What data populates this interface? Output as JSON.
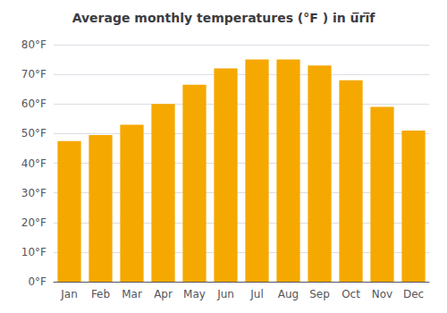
{
  "chart_data": {
    "type": "bar",
    "title": "Average monthly temperatures (°F ) in ū̅rī̅f",
    "categories": [
      "Jan",
      "Feb",
      "Mar",
      "Apr",
      "May",
      "Jun",
      "Jul",
      "Aug",
      "Sep",
      "Oct",
      "Nov",
      "Dec"
    ],
    "values": [
      47.5,
      49.5,
      53,
      60,
      66.5,
      72,
      75,
      75,
      73,
      68,
      59,
      51
    ],
    "color": "#F5A800",
    "ylim": [
      0,
      80
    ],
    "yticks": [
      {
        "value": 0,
        "label": "0°F"
      },
      {
        "value": 10,
        "label": "10°F"
      },
      {
        "value": 20,
        "label": "20°F"
      },
      {
        "value": 30,
        "label": "30°F"
      },
      {
        "value": 40,
        "label": "40°F"
      },
      {
        "value": 50,
        "label": "50°F"
      },
      {
        "value": 60,
        "label": "60°F"
      },
      {
        "value": 70,
        "label": "70°F"
      },
      {
        "value": 80,
        "label": "80°F"
      }
    ],
    "grid": true
  }
}
